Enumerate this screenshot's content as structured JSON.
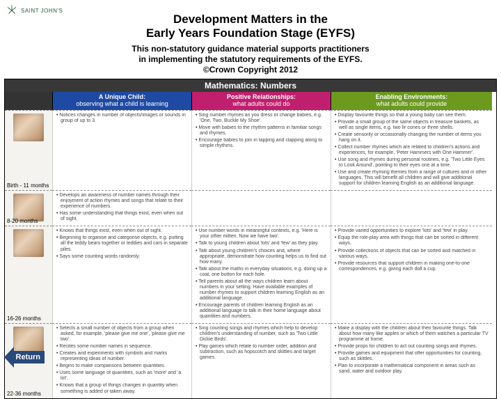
{
  "brand": {
    "name": "SAINT JOHN'S"
  },
  "header": {
    "title_line1": "Development Matters in the",
    "title_line2": "Early Years Foundation Stage (EYFS)",
    "sub_line1": "This non-statutory guidance material supports practitioners",
    "sub_line2": "in implementing the statutory requirements of the EYFS.",
    "copyright": "©Crown Copyright 2012"
  },
  "table": {
    "topic": "Mathematics: Numbers",
    "topic_bg": "#383838",
    "pillars": [
      {
        "title": "A Unique Child:",
        "sub": "observing what a child is learning",
        "bg": "#1f4aa3"
      },
      {
        "title": "Positive Relationships:",
        "sub": "what adults could do",
        "bg": "#c01f6e"
      },
      {
        "title": "Enabling Environments:",
        "sub": "what adults could provide",
        "bg": "#6b9a1f"
      }
    ],
    "age_col_bg": "#f4f3ef",
    "rows": [
      {
        "age_label": "Birth - 11 months",
        "unique": [
          "Notices changes in number of objects/images or sounds in group of up to 3."
        ],
        "positive": [
          "Sing number rhymes as you dress or change babies, e.g. 'One, Two, Buckle My Shoe'.",
          "Move with babies to the rhythm patterns in familiar songs and rhymes.",
          "Encourage babies to join in tapping and clapping along to simple rhythms."
        ],
        "enabling": [
          "Display favourite things so that a young baby can see them.",
          "Provide a small group of the same objects in treasure baskets, as well as single items, e.g. two fir cones or three shells.",
          "Create sensorily or occasionally changing the number of items you hang on it.",
          "Collect number rhymes which are related to children's actions and experiences, for example, 'Peter Hammers with One Hammer'.",
          "Use song and rhymes during personal routines, e.g. 'Two Little Eyes to Look Around', pointing to their eyes one at a time.",
          "Use and create rhyming themes from a range of cultures and in other languages. This will benefit all children and will give additional support for children learning English as an additional language."
        ]
      },
      {
        "age_label": "8-20 months",
        "unique": [
          "Develops an awareness of number names through their enjoyment of action rhymes and songs that relate to their experience of numbers.",
          "Has some understanding that things exist, even when out of sight."
        ],
        "positive": [],
        "enabling": []
      },
      {
        "age_label": "16-26 months",
        "unique": [
          "Knows that things exist, even when out of sight.",
          "Beginning to organise and categorise objects, e.g. putting all the teddy bears together or teddies and cars in separate piles.",
          "Says some counting words randomly."
        ],
        "positive": [
          "Use number words in meaningful contexts, e.g. 'Here is your other mitten. Now we have two'.",
          "Talk to young children about 'lots' and 'few' as they play.",
          "Talk about young children's choices and, where appropriate, demonstrate how counting helps us to find out how many.",
          "Talk about the maths in everyday situations, e.g. doing up a coat, one button for each hole.",
          "Tell parents about all the ways children learn about numbers in your setting. Have available examples of number rhymes to support children learning English as an additional language.",
          "Encourage parents of children learning English as an additional language to talk in their home language about quantities and numbers."
        ],
        "enabling": [
          "Provide varied opportunities to explore 'lots' and 'few' in play.",
          "Equip the role-play area with things that can be sorted in different ways.",
          "Provide collections of objects that can be sorted and matched in various ways.",
          "Provide resources that support children in making one-to-one correspondences, e.g. giving each doll a cup."
        ]
      },
      {
        "age_label": "22-36 months",
        "unique": [
          "Selects a small number of objects from a group when asked, for example, 'please give me one', 'please give me two'.",
          "Recites some number names in sequence.",
          "Creates and experiments with symbols and marks representing ideas of number.",
          "Begins to make comparisons between quantities.",
          "Uses some language of quantities, such as 'more' and 'a lot'.",
          "Knows that a group of things changes in quantity when something is added or taken away."
        ],
        "positive": [
          "Sing counting songs and rhymes which help to develop children's understanding of number, such as 'Two Little Dickie Birds'.",
          "Play games which relate to number order, addition and subtraction, such as hopscotch and skittles and target games."
        ],
        "enabling": [
          "Make a display with the children about their favourite things. Talk about how many like apples or which of them watches a particular TV programme at home.",
          "Provide props for children to act out counting songs and rhymes.",
          "Provide games and equipment that offer opportunities for counting, such as skittles.",
          "Plan to incorporate a mathematical component in areas such as sand, water and outdoor play."
        ]
      }
    ]
  },
  "return_button": {
    "label": "Return",
    "fill": "#28497a"
  }
}
